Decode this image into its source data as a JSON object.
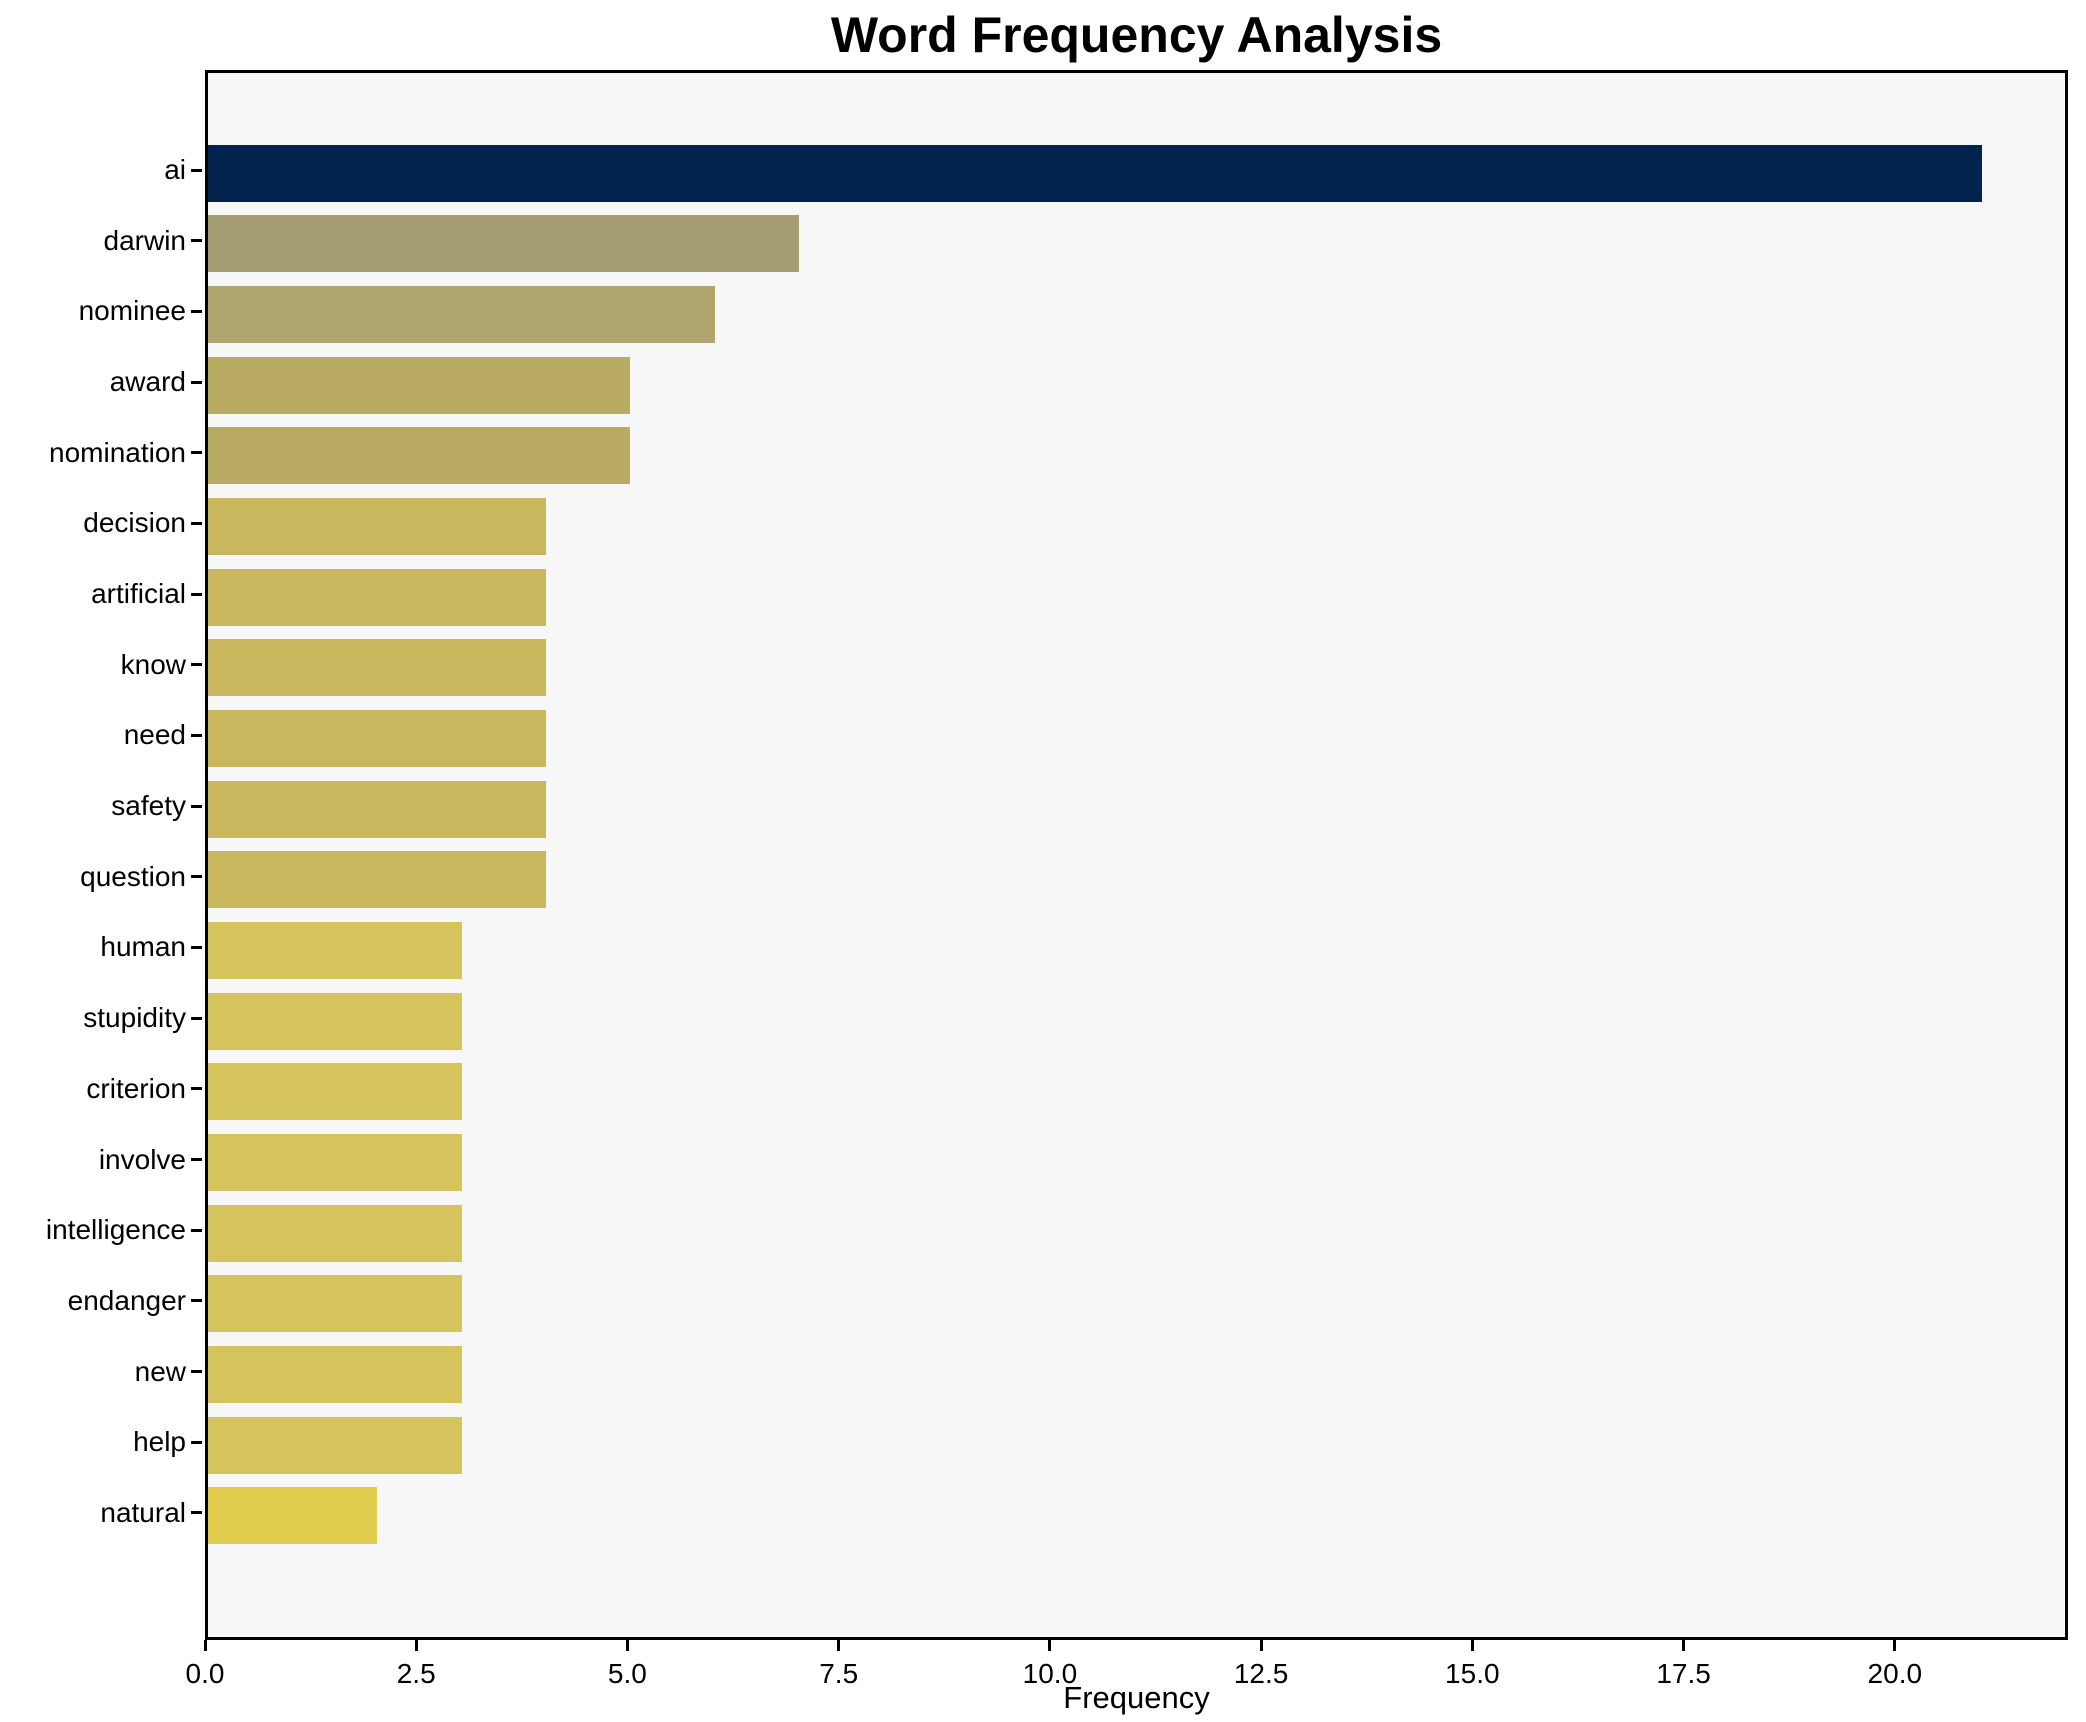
{
  "chart_data": {
    "type": "bar",
    "orientation": "horizontal",
    "title": "Word Frequency Analysis",
    "xlabel": "Frequency",
    "ylabel": "",
    "categories": [
      "ai",
      "darwin",
      "nominee",
      "award",
      "nomination",
      "decision",
      "artificial",
      "know",
      "need",
      "safety",
      "question",
      "human",
      "stupidity",
      "criterion",
      "involve",
      "intelligence",
      "endanger",
      "new",
      "help",
      "natural"
    ],
    "values": [
      21,
      7,
      6,
      5,
      5,
      4,
      4,
      4,
      4,
      4,
      4,
      3,
      3,
      3,
      3,
      3,
      3,
      3,
      3,
      2
    ],
    "bar_colors": [
      "#02234e",
      "#a49c72",
      "#afa56e",
      "#b9ab61",
      "#b9ab61",
      "#c8b75c",
      "#c8b75c",
      "#c8b75c",
      "#c8b75c",
      "#c8b75c",
      "#c8b75c",
      "#d5c35b",
      "#d5c35b",
      "#d5c35b",
      "#d5c35b",
      "#d5c35b",
      "#d5c35b",
      "#d5c35b",
      "#d5c35b",
      "#e2cd4e"
    ],
    "xlim": [
      0,
      22.05
    ],
    "xticks": [
      0,
      2.5,
      5,
      7.5,
      10,
      12.5,
      15,
      17.5,
      20
    ],
    "xtick_labels": [
      "0.0",
      "2.5",
      "5.0",
      "7.5",
      "10.0",
      "12.5",
      "15.0",
      "17.5",
      "20.0"
    ],
    "grid": false,
    "legend": "none",
    "plot_background": "#f7f7f8",
    "figure_background": "#ffffff",
    "axis_color": "#000000"
  }
}
